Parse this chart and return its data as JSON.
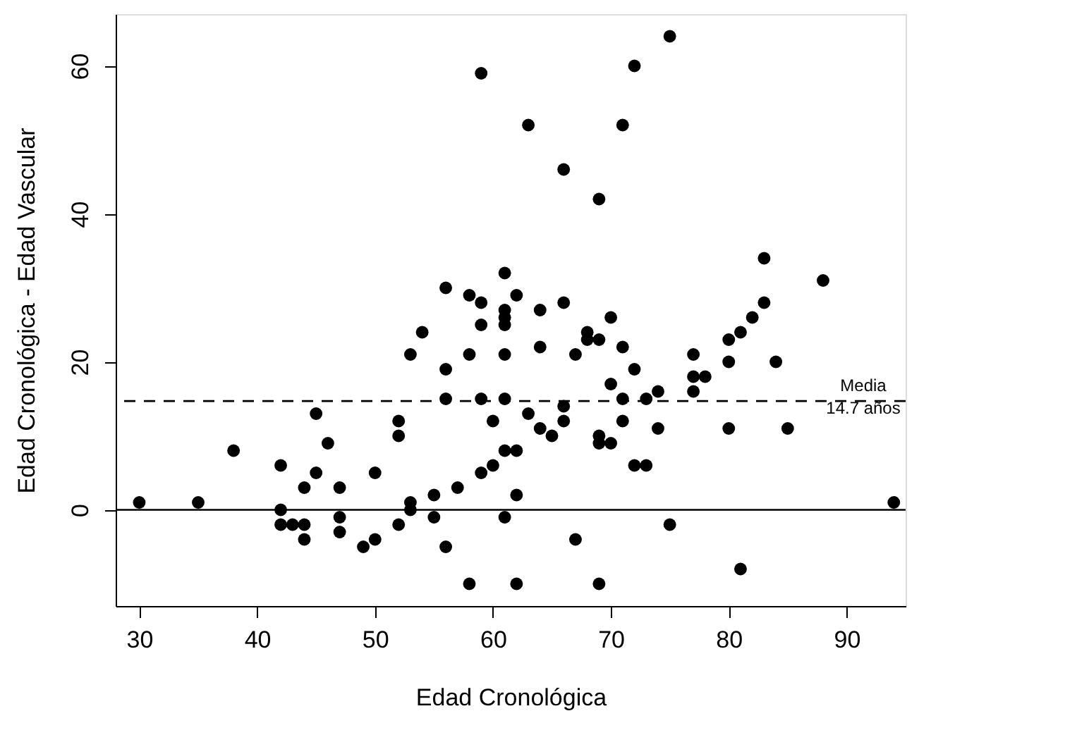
{
  "chart_data": {
    "type": "scatter",
    "xlabel": "Edad Cronológica",
    "ylabel": "Edad Cronológica - Edad Vascular",
    "x": [
      30,
      35,
      38,
      42,
      42,
      42,
      43,
      44,
      44,
      44,
      45,
      45,
      46,
      47,
      47,
      47,
      49,
      50,
      50,
      52,
      52,
      52,
      53,
      53,
      53,
      54,
      55,
      55,
      56,
      56,
      56,
      56,
      57,
      58,
      58,
      58,
      59,
      59,
      59,
      59,
      59,
      60,
      60,
      61,
      61,
      61,
      61,
      61,
      61,
      61,
      61,
      62,
      62,
      62,
      62,
      63,
      63,
      64,
      64,
      64,
      65,
      66,
      66,
      66,
      66,
      67,
      67,
      68,
      68,
      69,
      69,
      69,
      69,
      69,
      70,
      70,
      70,
      71,
      71,
      71,
      71,
      72,
      72,
      72,
      73,
      73,
      74,
      74,
      75,
      75,
      77,
      77,
      77,
      78,
      80,
      80,
      80,
      81,
      81,
      82,
      83,
      83,
      84,
      85,
      88,
      94
    ],
    "series": [
      {
        "color": "#000000",
        "values": [
          1,
          1,
          8,
          6,
          0,
          -2,
          -2,
          -2,
          -4,
          3,
          5,
          13,
          9,
          3,
          -1,
          -3,
          -5,
          -4,
          5,
          -2,
          12,
          10,
          0,
          1,
          21,
          24,
          2,
          -1,
          -5,
          30,
          19,
          15,
          3,
          21,
          29,
          -10,
          28,
          25,
          15,
          5,
          59,
          12,
          6,
          32,
          27,
          26,
          25,
          21,
          15,
          -1,
          8,
          29,
          8,
          2,
          -10,
          52,
          13,
          27,
          22,
          11,
          10,
          28,
          14,
          12,
          46,
          21,
          -4,
          24,
          23,
          23,
          42,
          10,
          9,
          -10,
          26,
          17,
          9,
          22,
          15,
          12,
          52,
          19,
          6,
          60,
          6,
          15,
          16,
          11,
          -2,
          64,
          21,
          18,
          16,
          18,
          23,
          20,
          11,
          24,
          -8,
          26,
          28,
          34,
          20,
          11,
          31,
          1
        ]
      }
    ],
    "xlim": [
      28,
      95
    ],
    "ylim": [
      -13,
      67
    ],
    "xticks": [
      30,
      40,
      50,
      60,
      70,
      80,
      90
    ],
    "yticks": [
      0,
      20,
      40,
      60
    ],
    "marker": "circle",
    "grid": false,
    "ref_lines": [
      {
        "axis": "y",
        "value": 0,
        "color": "#000000",
        "line_style": "solid"
      },
      {
        "axis": "y",
        "value": 14.7,
        "label": "Media\n14.7 años",
        "color": "#000000",
        "line_style": "dashed"
      }
    ]
  }
}
